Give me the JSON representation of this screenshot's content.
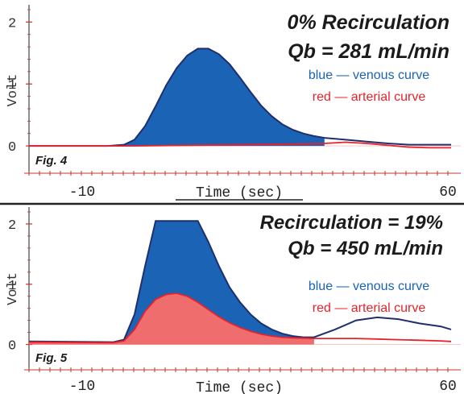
{
  "colors": {
    "blue": "#1a63b5",
    "venous_line": "#1f2f6e",
    "red": "#e8222a",
    "red_fill": "#f06d6d",
    "axis": "#444444",
    "tick": "#c0392b"
  },
  "chart_data": [
    {
      "type": "area",
      "figure_label": "Fig. 4",
      "title_lines": [
        "0% Recirculation",
        "Qb = 281 mL/min"
      ],
      "xlabel": "Time (sec)",
      "ylabel": "Volt",
      "x_tick_labels": [
        "-10",
        "60"
      ],
      "y_tick_labels": [
        "2",
        "1",
        "0"
      ],
      "xlim": [
        -20,
        60
      ],
      "ylim": [
        -0.35,
        2.2
      ],
      "legend": [
        {
          "text": "blue — venous curve",
          "color": "#1a63b5"
        },
        {
          "text": "red — arterial curve",
          "color": "#e8222a"
        }
      ],
      "series": [
        {
          "color": "#1a63b5",
          "x": [
            -20,
            -5,
            -2,
            0,
            2,
            4,
            6,
            8,
            10,
            12,
            14,
            16,
            18,
            20,
            22,
            24,
            26,
            28,
            30,
            32,
            34,
            36,
            40,
            44,
            48,
            52,
            56,
            60
          ],
          "y": [
            0,
            0,
            0.02,
            0.1,
            0.32,
            0.64,
            0.98,
            1.26,
            1.46,
            1.57,
            1.57,
            1.48,
            1.32,
            1.1,
            0.87,
            0.65,
            0.48,
            0.35,
            0.26,
            0.2,
            0.16,
            0.13,
            0.1,
            0.07,
            0.04,
            0.02,
            0.02,
            0.02
          ]
        },
        {
          "color": "#e8222a",
          "x": [
            -20,
            -10,
            0,
            10,
            20,
            30,
            36,
            40,
            44,
            48,
            52,
            56,
            60
          ],
          "y": [
            0,
            0,
            0,
            0.01,
            0.02,
            0.03,
            0.04,
            0.06,
            0.04,
            0.01,
            -0.02,
            -0.03,
            -0.03
          ]
        }
      ]
    },
    {
      "type": "area",
      "figure_label": "Fig. 5",
      "title_lines": [
        "Recirculation = 19%",
        "Qb = 450 mL/min"
      ],
      "xlabel": "Time (sec)",
      "ylabel": "Volt",
      "x_tick_labels": [
        "-10",
        "60"
      ],
      "y_tick_labels": [
        "2",
        "1",
        "0"
      ],
      "xlim": [
        -20,
        60
      ],
      "ylim": [
        -0.3,
        2.2
      ],
      "legend": [
        {
          "text": "blue — venous curve",
          "color": "#1a63b5"
        },
        {
          "text": "red — arterial curve",
          "color": "#e8222a"
        }
      ],
      "series": [
        {
          "color": "#1a63b5",
          "x": [
            -20,
            -4,
            -2,
            0,
            2,
            4,
            6,
            9,
            12,
            14,
            16,
            18,
            20,
            22,
            24,
            26,
            28,
            30,
            32,
            34,
            38,
            42,
            46,
            50,
            54,
            58,
            60
          ],
          "y": [
            0.05,
            0.04,
            0.08,
            0.5,
            1.3,
            2.05,
            2.05,
            2.05,
            2.05,
            1.7,
            1.3,
            0.95,
            0.7,
            0.5,
            0.35,
            0.25,
            0.18,
            0.14,
            0.12,
            0.12,
            0.25,
            0.4,
            0.45,
            0.42,
            0.35,
            0.3,
            0.25
          ]
        },
        {
          "color": "#e8222a",
          "x": [
            -20,
            -4,
            -2,
            0,
            2,
            4,
            6,
            8,
            10,
            12,
            14,
            16,
            18,
            20,
            22,
            24,
            26,
            28,
            30,
            34,
            38,
            42,
            46,
            50,
            54,
            58,
            60
          ],
          "y": [
            0.04,
            0.03,
            0.06,
            0.25,
            0.55,
            0.75,
            0.83,
            0.85,
            0.8,
            0.7,
            0.58,
            0.46,
            0.36,
            0.28,
            0.22,
            0.17,
            0.14,
            0.12,
            0.11,
            0.1,
            0.1,
            0.1,
            0.09,
            0.08,
            0.07,
            0.06,
            0.05
          ]
        }
      ]
    }
  ]
}
